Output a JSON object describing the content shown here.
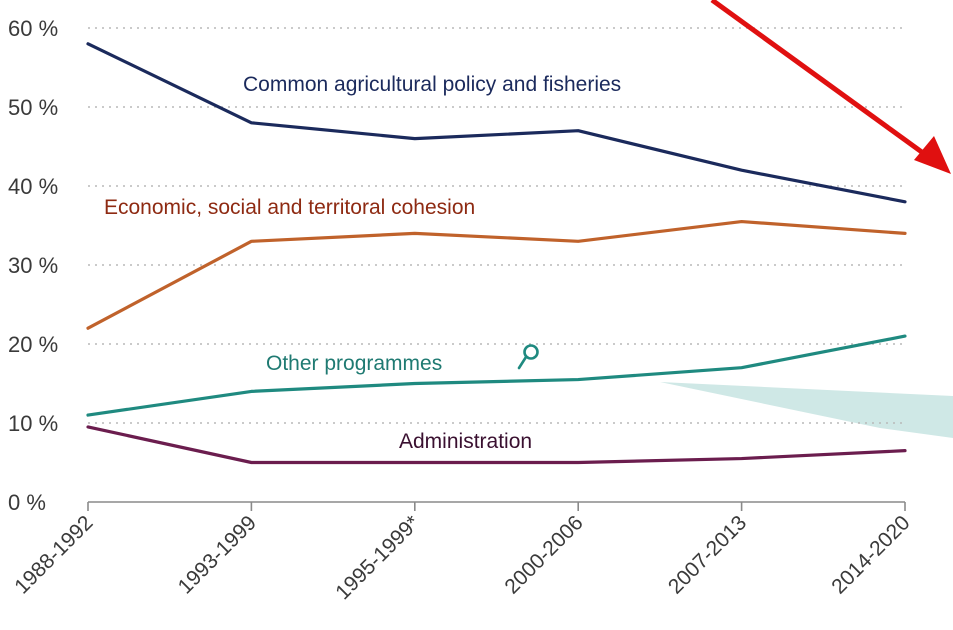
{
  "chart_data": {
    "type": "line",
    "title": "",
    "xlabel": "",
    "ylabel": "",
    "categories": [
      "1988-1992",
      "1993-1999",
      "1995-1999*",
      "2000-2006",
      "2007-2013",
      "2014-2020"
    ],
    "y_ticks": [
      "0 %",
      "10 %",
      "20 %",
      "30 %",
      "40 %",
      "50 %",
      "60 %"
    ],
    "ylim": [
      0,
      60
    ],
    "grid": true,
    "series": [
      {
        "key": "cap",
        "name": "Common agricultural policy and fisheries",
        "color": "#1b2a5c",
        "values": [
          58,
          48,
          46,
          47,
          42,
          38
        ]
      },
      {
        "key": "cohesion",
        "name": "Economic, social and territoral cohesion",
        "color": "#c0622b",
        "values": [
          22,
          33,
          34,
          33,
          35.5,
          34
        ]
      },
      {
        "key": "other",
        "name": "Other programmes",
        "color": "#1f8a80",
        "values": [
          11,
          14,
          15,
          15.5,
          17,
          21
        ]
      },
      {
        "key": "admin",
        "name": "Administration",
        "color": "#6b1d4e",
        "values": [
          9.5,
          5,
          5,
          5,
          5.5,
          6.5
        ]
      }
    ],
    "label_colors": {
      "cap": "#1b2a5c",
      "cohesion": "#8e2a12",
      "other": "#1f7a72",
      "admin": "#3a1030"
    }
  },
  "decorations": {
    "arrow_color": "#e01010",
    "zoom_band_color": "#cfe8e6",
    "zoom_icon": "magnifier-icon",
    "zoom_icon_color": "#1f8a80"
  }
}
